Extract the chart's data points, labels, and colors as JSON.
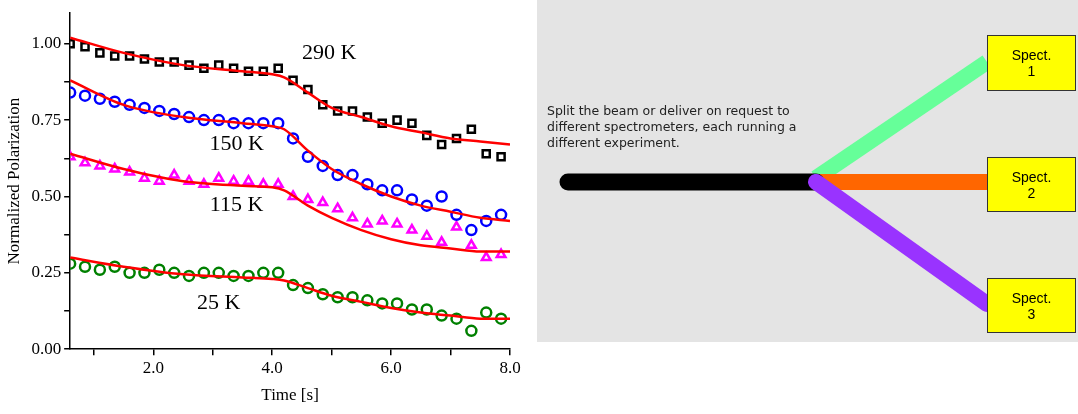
{
  "chart_data": [
    {
      "type": "scatter",
      "xlabel": "Time [s]",
      "ylabel": "Normalized Polarization",
      "xlim": [
        0.6,
        8.0
      ],
      "ylim": [
        0,
        1.1
      ],
      "xticks": [
        {
          "value": 1,
          "label": null
        },
        {
          "value": 2,
          "label": "2.0"
        },
        {
          "value": 3,
          "label": null
        },
        {
          "value": 4,
          "label": "4.0"
        },
        {
          "value": 5,
          "label": null
        },
        {
          "value": 6,
          "label": "6.0"
        },
        {
          "value": 7,
          "label": null
        },
        {
          "value": 8,
          "label": "8.0"
        }
      ],
      "yticks": [
        {
          "value": 0,
          "label": "0.00"
        },
        {
          "value": 0.125,
          "label": null
        },
        {
          "value": 0.25,
          "label": "0.25"
        },
        {
          "value": 0.375,
          "label": null
        },
        {
          "value": 0.5,
          "label": "0.50"
        },
        {
          "value": 0.625,
          "label": null
        },
        {
          "value": 0.75,
          "label": "0.75"
        },
        {
          "value": 0.875,
          "label": null
        },
        {
          "value": 1,
          "label": "1.00"
        }
      ],
      "x": [
        0.6,
        0.85,
        1.1,
        1.35,
        1.6,
        1.85,
        2.1,
        2.35,
        2.6,
        2.85,
        3.1,
        3.35,
        3.6,
        3.85,
        4.1,
        4.35,
        4.6,
        4.85,
        5.1,
        5.35,
        5.6,
        5.85,
        6.1,
        6.35,
        6.6,
        6.85,
        7.1,
        7.35,
        7.6,
        7.85
      ],
      "series": [
        {
          "name": "290 K",
          "color": "#000000",
          "marker": "square",
          "values": [
            1.0,
            0.99,
            0.97,
            0.96,
            0.96,
            0.95,
            0.94,
            0.94,
            0.93,
            0.92,
            0.93,
            0.92,
            0.91,
            0.91,
            0.92,
            0.88,
            0.85,
            0.8,
            0.78,
            0.78,
            0.76,
            0.74,
            0.75,
            0.74,
            0.7,
            0.67,
            0.69,
            0.72,
            0.64,
            0.63
          ]
        },
        {
          "name": "150 K",
          "color": "#0000ff",
          "marker": "circle",
          "values": [
            0.84,
            0.83,
            0.82,
            0.81,
            0.8,
            0.79,
            0.78,
            0.77,
            0.76,
            0.75,
            0.75,
            0.74,
            0.74,
            0.74,
            0.74,
            0.69,
            0.63,
            0.6,
            0.57,
            0.57,
            0.54,
            0.52,
            0.52,
            0.49,
            0.47,
            0.5,
            0.44,
            0.39,
            0.42,
            0.44
          ]
        },
        {
          "name": "115 K",
          "color": "#ff00ff",
          "marker": "triangle",
          "values": [
            0.63,
            0.61,
            0.6,
            0.59,
            0.58,
            0.56,
            0.55,
            0.57,
            0.55,
            0.54,
            0.56,
            0.55,
            0.55,
            0.54,
            0.54,
            0.5,
            0.49,
            0.48,
            0.46,
            0.43,
            0.41,
            0.42,
            0.41,
            0.39,
            0.37,
            0.35,
            0.4,
            0.34,
            0.3,
            0.31
          ]
        },
        {
          "name": "25 K",
          "color": "#008000",
          "marker": "circle",
          "values": [
            0.28,
            0.27,
            0.26,
            0.27,
            0.25,
            0.25,
            0.26,
            0.25,
            0.24,
            0.25,
            0.25,
            0.24,
            0.24,
            0.25,
            0.25,
            0.21,
            0.2,
            0.18,
            0.17,
            0.17,
            0.16,
            0.15,
            0.15,
            0.13,
            0.13,
            0.11,
            0.1,
            0.06,
            0.12,
            0.1
          ]
        },
        {
          "type": "line",
          "color": "#ff0000",
          "x": [
            0.6,
            1.5,
            2.5,
            3.5,
            4.0,
            4.2,
            4.6,
            5.0,
            5.5,
            6.0,
            6.5,
            7.0,
            7.5,
            8.0
          ],
          "values": [
            1.02,
            0.97,
            0.93,
            0.91,
            0.9,
            0.89,
            0.84,
            0.79,
            0.76,
            0.73,
            0.71,
            0.69,
            0.68,
            0.67
          ]
        },
        {
          "type": "line",
          "color": "#ff0000",
          "x": [
            0.6,
            1.5,
            2.5,
            3.5,
            4.0,
            4.2,
            4.6,
            5.0,
            5.5,
            6.0,
            6.5,
            7.0,
            7.5,
            8.0
          ],
          "values": [
            0.88,
            0.8,
            0.76,
            0.74,
            0.73,
            0.72,
            0.65,
            0.59,
            0.54,
            0.5,
            0.47,
            0.45,
            0.43,
            0.42
          ]
        },
        {
          "type": "line",
          "color": "#ff0000",
          "x": [
            0.6,
            1.5,
            2.5,
            3.5,
            4.0,
            4.2,
            4.6,
            5.0,
            5.5,
            6.0,
            6.5,
            7.0,
            7.5,
            8.0
          ],
          "values": [
            0.64,
            0.59,
            0.55,
            0.535,
            0.53,
            0.52,
            0.47,
            0.43,
            0.39,
            0.36,
            0.34,
            0.33,
            0.32,
            0.32
          ]
        },
        {
          "type": "line",
          "color": "#ff0000",
          "x": [
            0.6,
            1.5,
            2.5,
            3.5,
            4.0,
            4.2,
            4.6,
            5.0,
            5.5,
            6.0,
            6.5,
            7.0,
            7.5,
            8.0
          ],
          "values": [
            0.3,
            0.27,
            0.245,
            0.235,
            0.23,
            0.225,
            0.2,
            0.175,
            0.155,
            0.135,
            0.12,
            0.11,
            0.1,
            0.1
          ]
        }
      ]
    },
    {
      "type": "other",
      "annotations": [
        "Split the beam or deliver on request to different spectrometers, each running a different experiment.",
        "Spect. 1",
        "Spect. 2",
        "Spect. 3"
      ]
    }
  ]
}
